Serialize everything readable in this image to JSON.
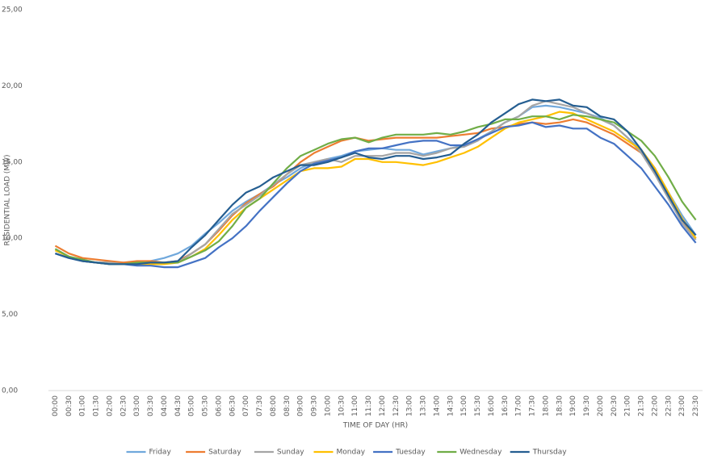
{
  "chart_data": {
    "type": "line",
    "y_label": "RESIDENTIAL LOAD (MW)",
    "x_label": "TIME OF DAY (HR)",
    "categories": [
      "00:00",
      "00:30",
      "01:00",
      "01:30",
      "02:00",
      "02:30",
      "03:00",
      "03:30",
      "04:00",
      "04:30",
      "05:00",
      "05:30",
      "06:00",
      "06:30",
      "07:00",
      "07:30",
      "08:00",
      "08:30",
      "09:00",
      "09:30",
      "10:00",
      "10:30",
      "11:00",
      "11:30",
      "12:00",
      "12:30",
      "13:00",
      "13:30",
      "14:00",
      "14:30",
      "15:00",
      "15:30",
      "16:00",
      "16:30",
      "17:00",
      "17:30",
      "18:00",
      "18:30",
      "19:00",
      "19:30",
      "20:00",
      "20:30",
      "21:00",
      "21:30",
      "22:00",
      "22:30",
      "23:00",
      "23:30"
    ],
    "series": [
      {
        "name": "Friday",
        "color": "#70a8dc",
        "values": [
          9.3,
          8.8,
          8.5,
          8.4,
          8.4,
          8.4,
          8.4,
          8.5,
          8.7,
          9.0,
          9.5,
          10.3,
          11.0,
          11.8,
          12.4,
          12.9,
          13.5,
          14.0,
          14.6,
          15.0,
          15.2,
          15.4,
          15.7,
          15.8,
          15.9,
          15.8,
          15.8,
          15.5,
          15.7,
          15.9,
          16.1,
          16.5,
          17.0,
          17.6,
          18.0,
          18.6,
          18.7,
          18.6,
          18.4,
          18.2,
          17.9,
          17.4,
          16.6,
          15.8,
          14.6,
          13.0,
          11.5,
          10.2
        ]
      },
      {
        "name": "Saturday",
        "color": "#ed7d31",
        "values": [
          9.5,
          9.0,
          8.7,
          8.6,
          8.5,
          8.4,
          8.5,
          8.5,
          8.4,
          8.5,
          9.0,
          9.6,
          10.5,
          11.5,
          12.3,
          12.9,
          13.4,
          14.2,
          15.0,
          15.6,
          16.0,
          16.4,
          16.6,
          16.4,
          16.5,
          16.6,
          16.6,
          16.6,
          16.6,
          16.7,
          16.8,
          16.9,
          17.2,
          17.3,
          17.5,
          17.6,
          17.5,
          17.6,
          17.8,
          17.6,
          17.2,
          16.8,
          16.2,
          15.6,
          14.4,
          12.8,
          11.2,
          10.0
        ]
      },
      {
        "name": "Sunday",
        "color": "#a5a5a5",
        "values": [
          9.2,
          8.8,
          8.5,
          8.4,
          8.4,
          8.3,
          8.3,
          8.4,
          8.4,
          8.4,
          9.0,
          9.6,
          10.6,
          11.6,
          12.2,
          12.8,
          13.5,
          14.2,
          14.8,
          15.0,
          15.2,
          15.0,
          15.4,
          15.4,
          15.4,
          15.6,
          15.6,
          15.4,
          15.6,
          15.9,
          16.0,
          16.4,
          17.0,
          17.6,
          18.0,
          18.7,
          19.0,
          18.8,
          18.6,
          18.2,
          17.8,
          17.4,
          16.6,
          15.6,
          14.2,
          12.6,
          11.0,
          9.9
        ]
      },
      {
        "name": "Monday",
        "color": "#ffc000",
        "values": [
          9.2,
          8.8,
          8.5,
          8.4,
          8.3,
          8.3,
          8.3,
          8.3,
          8.3,
          8.4,
          8.8,
          9.3,
          10.2,
          11.2,
          12.0,
          12.6,
          13.2,
          13.8,
          14.4,
          14.6,
          14.6,
          14.7,
          15.2,
          15.2,
          15.0,
          15.0,
          14.9,
          14.8,
          15.0,
          15.3,
          15.6,
          16.0,
          16.6,
          17.2,
          17.6,
          17.8,
          18.0,
          18.3,
          18.2,
          17.8,
          17.4,
          17.0,
          16.4,
          15.8,
          14.6,
          13.0,
          11.3,
          10.0
        ]
      },
      {
        "name": "Tuesday",
        "color": "#4472c4",
        "values": [
          9.0,
          8.7,
          8.5,
          8.4,
          8.3,
          8.3,
          8.2,
          8.2,
          8.1,
          8.1,
          8.4,
          8.7,
          9.4,
          10.0,
          10.8,
          11.8,
          12.7,
          13.6,
          14.4,
          14.9,
          15.1,
          15.3,
          15.7,
          15.9,
          15.9,
          16.1,
          16.3,
          16.4,
          16.4,
          16.1,
          16.1,
          16.5,
          16.9,
          17.3,
          17.4,
          17.6,
          17.3,
          17.4,
          17.2,
          17.2,
          16.6,
          16.2,
          15.4,
          14.6,
          13.4,
          12.2,
          10.8,
          9.7
        ]
      },
      {
        "name": "Wednesday",
        "color": "#70ad47",
        "values": [
          9.3,
          8.8,
          8.6,
          8.4,
          8.3,
          8.3,
          8.4,
          8.4,
          8.4,
          8.4,
          8.8,
          9.2,
          9.8,
          10.8,
          12.0,
          12.6,
          13.6,
          14.6,
          15.4,
          15.8,
          16.2,
          16.5,
          16.6,
          16.3,
          16.6,
          16.8,
          16.8,
          16.8,
          16.9,
          16.8,
          17.0,
          17.3,
          17.5,
          17.8,
          17.8,
          18.0,
          18.0,
          17.8,
          18.1,
          18.0,
          17.8,
          17.6,
          17.0,
          16.4,
          15.4,
          14.0,
          12.4,
          11.2
        ]
      },
      {
        "name": "Thursday",
        "color": "#255e91",
        "values": [
          9.0,
          8.7,
          8.5,
          8.4,
          8.3,
          8.3,
          8.3,
          8.4,
          8.4,
          8.5,
          9.4,
          10.2,
          11.2,
          12.2,
          13.0,
          13.4,
          14.0,
          14.4,
          14.8,
          14.8,
          15.0,
          15.3,
          15.6,
          15.3,
          15.2,
          15.4,
          15.4,
          15.2,
          15.3,
          15.5,
          16.2,
          16.8,
          17.6,
          18.2,
          18.8,
          19.1,
          19.0,
          19.1,
          18.7,
          18.6,
          18.0,
          17.8,
          17.0,
          15.8,
          14.4,
          12.8,
          11.2,
          10.2
        ]
      }
    ],
    "ylim": [
      0,
      25
    ],
    "yticks": [
      {
        "value": 0,
        "label": "0,00"
      },
      {
        "value": 5,
        "label": "5,00"
      },
      {
        "value": 10,
        "label": "10,00"
      },
      {
        "value": 15,
        "label": "15,00"
      },
      {
        "value": 20,
        "label": "20,00"
      },
      {
        "value": 25,
        "label": "25,00"
      }
    ],
    "grid": false,
    "legend": "bottom"
  }
}
